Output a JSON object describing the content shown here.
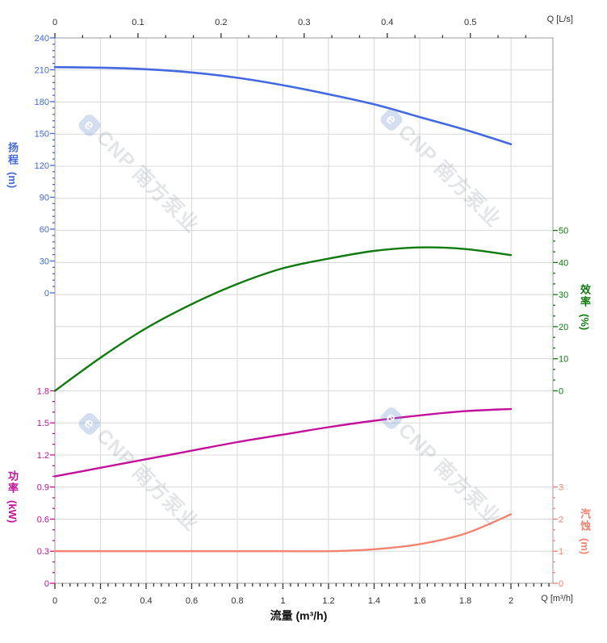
{
  "chart_data": {
    "type": "line",
    "title": "",
    "watermark": {
      "logo": "e",
      "text": "CNP 南方泵业"
    },
    "colors": {
      "grid": "#D8D8D8",
      "border": "#ACACAC",
      "xaxis_text": "#333333",
      "background": "#FFFFFF"
    },
    "x_axis_bottom": {
      "label": "流量 (m³/h)",
      "unit_label": "Q [m³/h]",
      "ticks": [
        "0",
        "0.2",
        "0.4",
        "0.6",
        "0.8",
        "1",
        "1.2",
        "1.4",
        "1.6",
        "1.8",
        "2"
      ],
      "range": [
        0,
        2.18
      ],
      "color": "#333333"
    },
    "x_axis_top": {
      "unit_label": "Q [L/s]",
      "ticks": [
        "0",
        "0.1",
        "0.2",
        "0.3",
        "0.4",
        "0.5"
      ],
      "range": [
        0,
        0.6
      ],
      "color": "#333333"
    },
    "y_axes": {
      "head": {
        "title": "扬程",
        "unit": "(m)",
        "color": "#4169E1",
        "max": 240,
        "min": 0,
        "ticks": [
          "240",
          "210",
          "180",
          "150",
          "120",
          "90",
          "60",
          "30",
          "0"
        ]
      },
      "efficiency": {
        "title": "效率",
        "unit": "(%)",
        "color": "#0F7B0F",
        "max": 50,
        "min": 0,
        "ticks": [
          "50",
          "40",
          "30",
          "20",
          "10",
          "0"
        ]
      },
      "power": {
        "title": "功率",
        "unit": "(kW)",
        "color": "#C4119B",
        "max": 1.8,
        "min": 0,
        "ticks": [
          "1.8",
          "1.5",
          "1.2",
          "0.9",
          "0.6",
          "0.3",
          "0"
        ]
      },
      "npsh": {
        "title": "汽蚀",
        "unit": "(m)",
        "color": "#F5826E",
        "max": 3,
        "min": 0,
        "ticks": [
          "3",
          "2",
          "1",
          "0"
        ]
      }
    },
    "q_values": [
      0,
      0.2,
      0.4,
      0.6,
      0.8,
      1.0,
      1.2,
      1.4,
      1.6,
      1.8,
      2.0
    ],
    "series": [
      {
        "name": "head",
        "axis": "head",
        "color": "#4269E2",
        "width": 2.6,
        "values": [
          212.5,
          212,
          210.5,
          207.5,
          202.5,
          195.5,
          187,
          177.5,
          165.5,
          153.5,
          140
        ]
      },
      {
        "name": "efficiency",
        "axis": "efficiency",
        "color": "#0F7B0F",
        "width": 2.4,
        "values": [
          0,
          10.3,
          19.5,
          27,
          33.3,
          38.2,
          41.2,
          43.6,
          44.7,
          44.2,
          42.3
        ]
      },
      {
        "name": "power",
        "axis": "power",
        "color": "#C4119B",
        "width": 2.4,
        "values": [
          1.0,
          1.08,
          1.16,
          1.24,
          1.32,
          1.39,
          1.46,
          1.52,
          1.57,
          1.61,
          1.63
        ]
      },
      {
        "name": "npsh",
        "axis": "npsh",
        "color": "#F5826E",
        "width": 2.4,
        "values": [
          1.0,
          1.0,
          1.0,
          1.0,
          1.0,
          1.0,
          1.0,
          1.06,
          1.22,
          1.55,
          2.15
        ]
      }
    ]
  }
}
